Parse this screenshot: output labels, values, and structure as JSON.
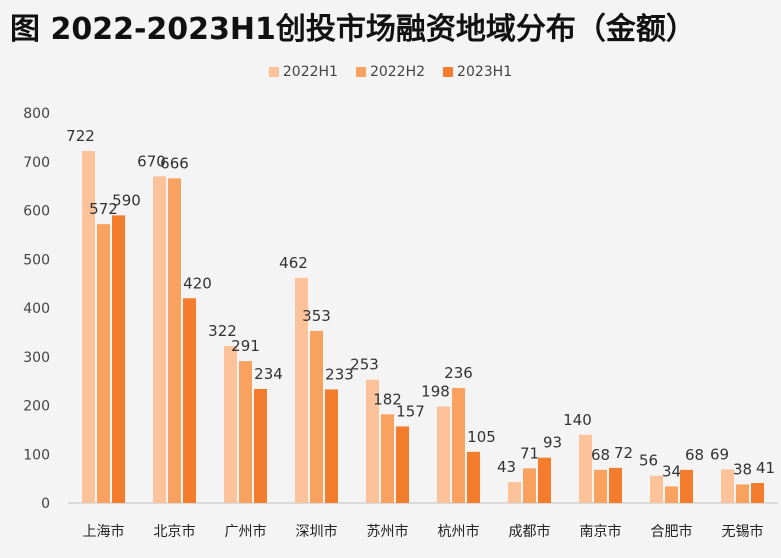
{
  "title": "图 2022-2023H1创投市场融资地域分布（金额）",
  "colors": {
    "2022H1": "#fcc39a",
    "2022H2": "#f9a15f",
    "2023H1": "#f47d2d",
    "axis": "#bfbfbf"
  },
  "chart_data": {
    "type": "bar",
    "title": "图 2022-2023H1创投市场融资地域分布（金额）",
    "categories": [
      "上海市",
      "北京市",
      "广州市",
      "深圳市",
      "苏州市",
      "杭州市",
      "成都市",
      "南京市",
      "合肥市",
      "无锡市"
    ],
    "series": [
      {
        "name": "2022H1",
        "values": [
          722,
          670,
          322,
          462,
          253,
          198,
          43,
          140,
          56,
          69
        ]
      },
      {
        "name": "2022H2",
        "values": [
          572,
          666,
          291,
          353,
          182,
          236,
          71,
          68,
          34,
          38
        ]
      },
      {
        "name": "2023H1",
        "values": [
          590,
          420,
          234,
          233,
          157,
          105,
          93,
          72,
          68,
          41
        ]
      }
    ],
    "ylim": [
      0,
      800
    ],
    "yticks": [
      0,
      100,
      200,
      300,
      400,
      500,
      600,
      700,
      800
    ],
    "grid": false,
    "legend": "top-center"
  }
}
